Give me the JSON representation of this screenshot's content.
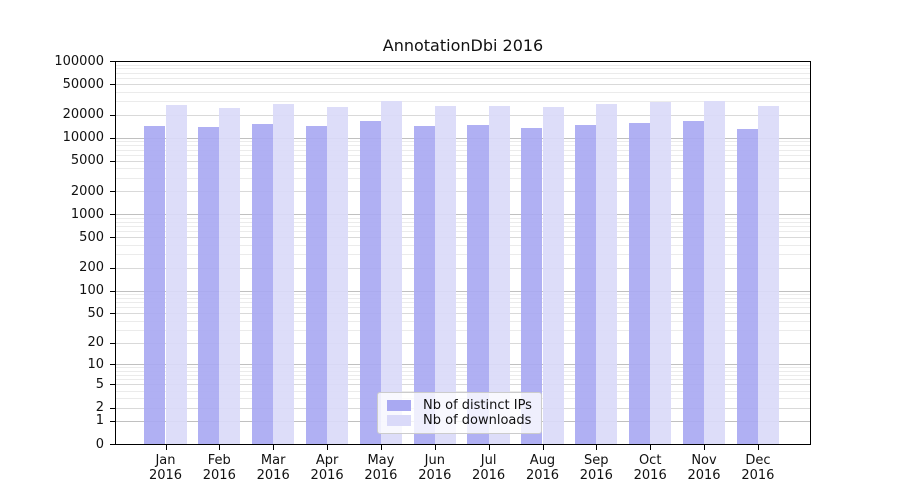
{
  "chart_data": {
    "type": "bar",
    "title": "AnnotationDbi 2016",
    "yscale": "log1p",
    "ylim": [
      0,
      100000
    ],
    "yticks": [
      100000,
      50000,
      20000,
      10000,
      5000,
      2000,
      1000,
      500,
      200,
      100,
      50,
      20,
      10,
      5,
      2,
      1,
      0
    ],
    "grid": "on",
    "categories": [
      "Jan",
      "Feb",
      "Mar",
      "Apr",
      "May",
      "Jun",
      "Jul",
      "Aug",
      "Sep",
      "Oct",
      "Nov",
      "Dec"
    ],
    "year": "2016",
    "series": [
      {
        "name": "Nb of distinct IPs",
        "color": "#a9a9f2",
        "values": [
          14200,
          13900,
          15100,
          14200,
          16500,
          14200,
          14700,
          13300,
          14500,
          15700,
          16400,
          13100
        ]
      },
      {
        "name": "Nb of downloads",
        "color": "#dadaf9",
        "values": [
          26700,
          24500,
          27200,
          25200,
          30300,
          25900,
          25900,
          25400,
          27800,
          29400,
          30000,
          25900
        ]
      }
    ],
    "legend_position": "lower center"
  }
}
